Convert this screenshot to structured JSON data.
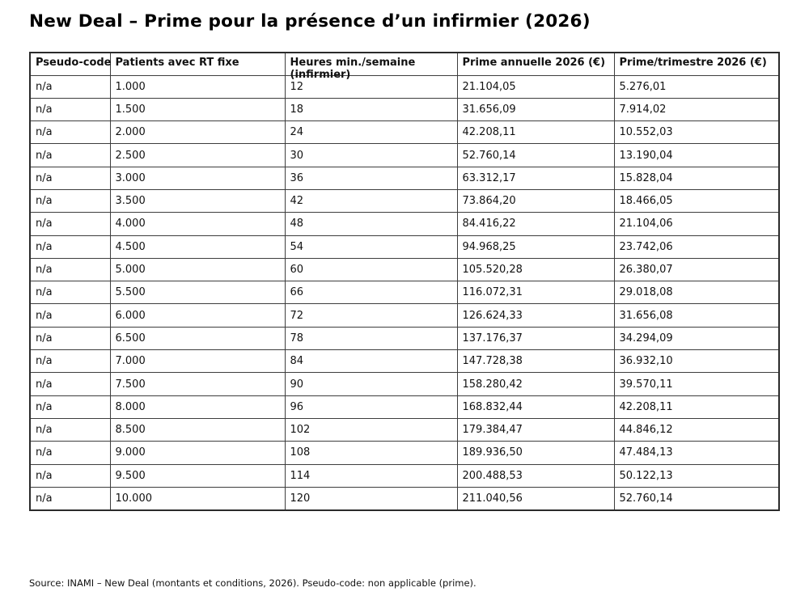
{
  "title": "New Deal – Prime pour la présence d’un infirmier (2026)",
  "table": {
    "columns": [
      {
        "label": "Pseudo-code"
      },
      {
        "label": "Patients avec RT fixe"
      },
      {
        "label": "Heures min./semaine",
        "label2": "(infirmier)"
      },
      {
        "label": "Prime annuelle 2026 (€)"
      },
      {
        "label": "Prime/trimestre 2026 (€)"
      }
    ],
    "rows": [
      [
        "n/a",
        "1.000",
        "12",
        "21.104,05",
        "5.276,01"
      ],
      [
        "n/a",
        "1.500",
        "18",
        "31.656,09",
        "7.914,02"
      ],
      [
        "n/a",
        "2.000",
        "24",
        "42.208,11",
        "10.552,03"
      ],
      [
        "n/a",
        "2.500",
        "30",
        "52.760,14",
        "13.190,04"
      ],
      [
        "n/a",
        "3.000",
        "36",
        "63.312,17",
        "15.828,04"
      ],
      [
        "n/a",
        "3.500",
        "42",
        "73.864,20",
        "18.466,05"
      ],
      [
        "n/a",
        "4.000",
        "48",
        "84.416,22",
        "21.104,06"
      ],
      [
        "n/a",
        "4.500",
        "54",
        "94.968,25",
        "23.742,06"
      ],
      [
        "n/a",
        "5.000",
        "60",
        "105.520,28",
        "26.380,07"
      ],
      [
        "n/a",
        "5.500",
        "66",
        "116.072,31",
        "29.018,08"
      ],
      [
        "n/a",
        "6.000",
        "72",
        "126.624,33",
        "31.656,08"
      ],
      [
        "n/a",
        "6.500",
        "78",
        "137.176,37",
        "34.294,09"
      ],
      [
        "n/a",
        "7.000",
        "84",
        "147.728,38",
        "36.932,10"
      ],
      [
        "n/a",
        "7.500",
        "90",
        "158.280,42",
        "39.570,11"
      ],
      [
        "n/a",
        "8.000",
        "96",
        "168.832,44",
        "42.208,11"
      ],
      [
        "n/a",
        "8.500",
        "102",
        "179.384,47",
        "44.846,12"
      ],
      [
        "n/a",
        "9.000",
        "108",
        "189.936,50",
        "47.484,13"
      ],
      [
        "n/a",
        "9.500",
        "114",
        "200.488,53",
        "50.122,13"
      ],
      [
        "n/a",
        "10.000",
        "120",
        "211.040,56",
        "52.760,14"
      ]
    ]
  },
  "footer": {
    "source": "Source: INAMI – New Deal (montants et conditions, 2026). Pseudo-code: non applicable (prime)."
  },
  "colors": {
    "background": "#ffffff",
    "text": "#111111",
    "border": "#3d3d3d"
  }
}
